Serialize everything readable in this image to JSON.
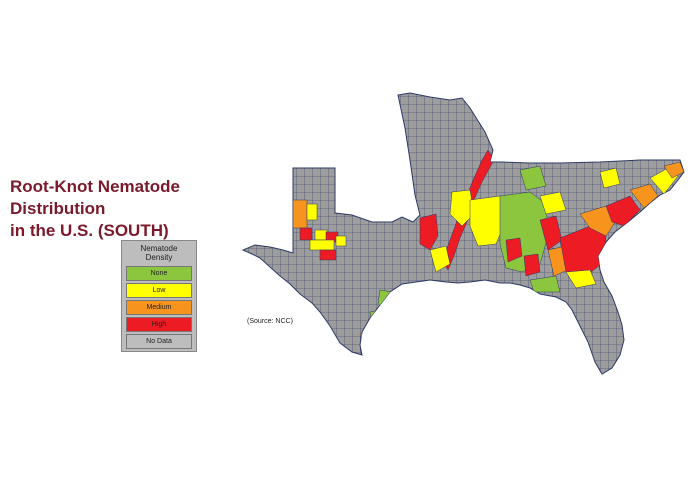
{
  "title": {
    "line1": "Root-Knot Nematode Distribution",
    "line2": "in the U.S. (SOUTH)"
  },
  "legend": {
    "heading_line1": "Nematode",
    "heading_line2": "Density",
    "items": [
      {
        "label": "None",
        "color": "#8cc63f"
      },
      {
        "label": "Low",
        "color": "#ffff00"
      },
      {
        "label": "Medium",
        "color": "#f7941d"
      },
      {
        "label": "High",
        "color": "#ed1c24"
      },
      {
        "label": "No Data",
        "color": "#bdbdbd"
      }
    ]
  },
  "source": "(Source: NCC)",
  "colors": {
    "title": "#7a1a2c",
    "no_data": "#9d9d9d",
    "county_border": "#2e3a66"
  }
}
